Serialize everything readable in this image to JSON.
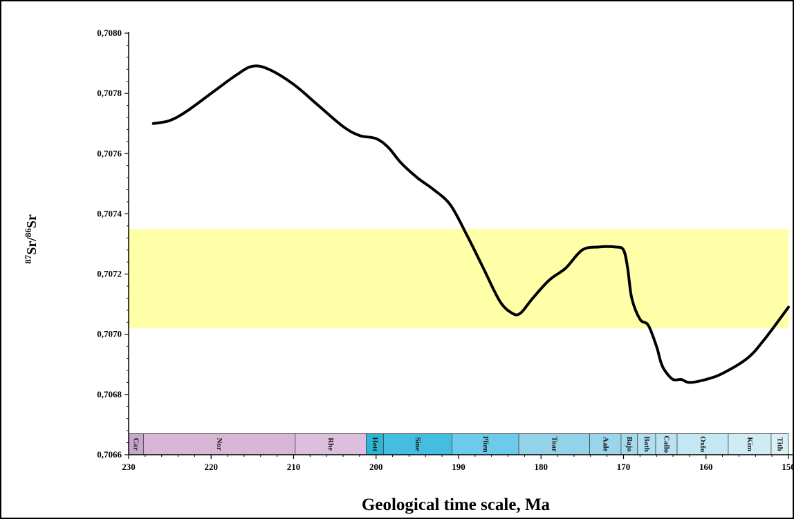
{
  "chart_data": {
    "type": "line",
    "xlabel": "Geological time scale, Ma",
    "ylabel_sup1": "87",
    "ylabel_main1": "Sr/",
    "ylabel_sup2": "86",
    "ylabel_main2": "Sr",
    "xlim": [
      230,
      150
    ],
    "ylim": [
      0.7066,
      0.708
    ],
    "x_ticks": [
      230,
      220,
      210,
      200,
      190,
      180,
      170,
      160,
      150
    ],
    "x_tick_labels": [
      "230",
      "220",
      "210",
      "200",
      "190",
      "180",
      "170",
      "160",
      "150"
    ],
    "y_ticks": [
      0.7066,
      0.7068,
      0.707,
      0.7072,
      0.7074,
      0.7076,
      0.7078,
      0.708
    ],
    "y_tick_labels": [
      "0,7066",
      "0,7068",
      "0,7070",
      "0,7072",
      "0,7074",
      "0,7076",
      "0,7078",
      "0,7080"
    ],
    "highlight_band": {
      "y_from": 0.70702,
      "y_to": 0.70735,
      "color": "#ffffa8"
    },
    "line_color": "#000000",
    "series": [
      {
        "x": [
          227,
          225,
          223,
          220,
          217,
          215,
          213,
          210,
          207,
          204,
          202,
          200,
          198.5,
          197,
          195,
          193,
          191,
          189,
          187,
          185,
          183.5,
          182.5,
          181,
          179,
          177,
          175,
          173,
          171,
          170,
          169.5,
          169,
          168,
          167,
          166,
          165.5,
          165,
          164,
          163,
          162,
          160,
          158,
          155,
          153,
          150
        ],
        "y": [
          0.7077,
          0.70771,
          0.70774,
          0.7078,
          0.70786,
          0.70789,
          0.70788,
          0.70783,
          0.70776,
          0.70769,
          0.70766,
          0.70765,
          0.70762,
          0.70757,
          0.70752,
          0.70748,
          0.70743,
          0.70733,
          0.70722,
          0.70711,
          0.70707,
          0.70707,
          0.70712,
          0.70718,
          0.70722,
          0.70728,
          0.70729,
          0.70729,
          0.70728,
          0.70722,
          0.70712,
          0.70705,
          0.70703,
          0.70696,
          0.70691,
          0.70688,
          0.70685,
          0.70685,
          0.70684,
          0.70685,
          0.70687,
          0.70692,
          0.70698,
          0.70709
        ]
      }
    ],
    "stages": [
      {
        "name": "Car",
        "from": 230,
        "to": 228.2,
        "color": "#c9a6cc"
      },
      {
        "name": "Nor",
        "from": 228.2,
        "to": 209.8,
        "color": "#d7b6d6"
      },
      {
        "name": "Rhe",
        "from": 209.8,
        "to": 201.2,
        "color": "#dcbfdc"
      },
      {
        "name": "Hett",
        "from": 201.2,
        "to": 199.1,
        "color": "#2eb5d5"
      },
      {
        "name": "Sine",
        "from": 199.1,
        "to": 190.8,
        "color": "#45bde0"
      },
      {
        "name": "Plien",
        "from": 190.8,
        "to": 182.7,
        "color": "#6ccaeb"
      },
      {
        "name": "Toar",
        "from": 182.7,
        "to": 174.1,
        "color": "#94d2ea"
      },
      {
        "name": "Aale",
        "from": 174.1,
        "to": 170.3,
        "color": "#9bd5ec"
      },
      {
        "name": "Bajo",
        "from": 170.3,
        "to": 168.3,
        "color": "#a4d9ee"
      },
      {
        "name": "Bath",
        "from": 168.3,
        "to": 166.1,
        "color": "#b0dff0"
      },
      {
        "name": "Callo",
        "from": 166.1,
        "to": 163.5,
        "color": "#bae3f1"
      },
      {
        "name": "Oxfo",
        "from": 163.5,
        "to": 157.3,
        "color": "#c4e8f3"
      },
      {
        "name": "Kim",
        "from": 157.3,
        "to": 152.1,
        "color": "#cfecf5"
      },
      {
        "name": "Tith",
        "from": 152.1,
        "to": 150,
        "color": "#d9f0f7"
      }
    ],
    "stages_ylim": [
      0.7066,
      0.70667
    ]
  }
}
